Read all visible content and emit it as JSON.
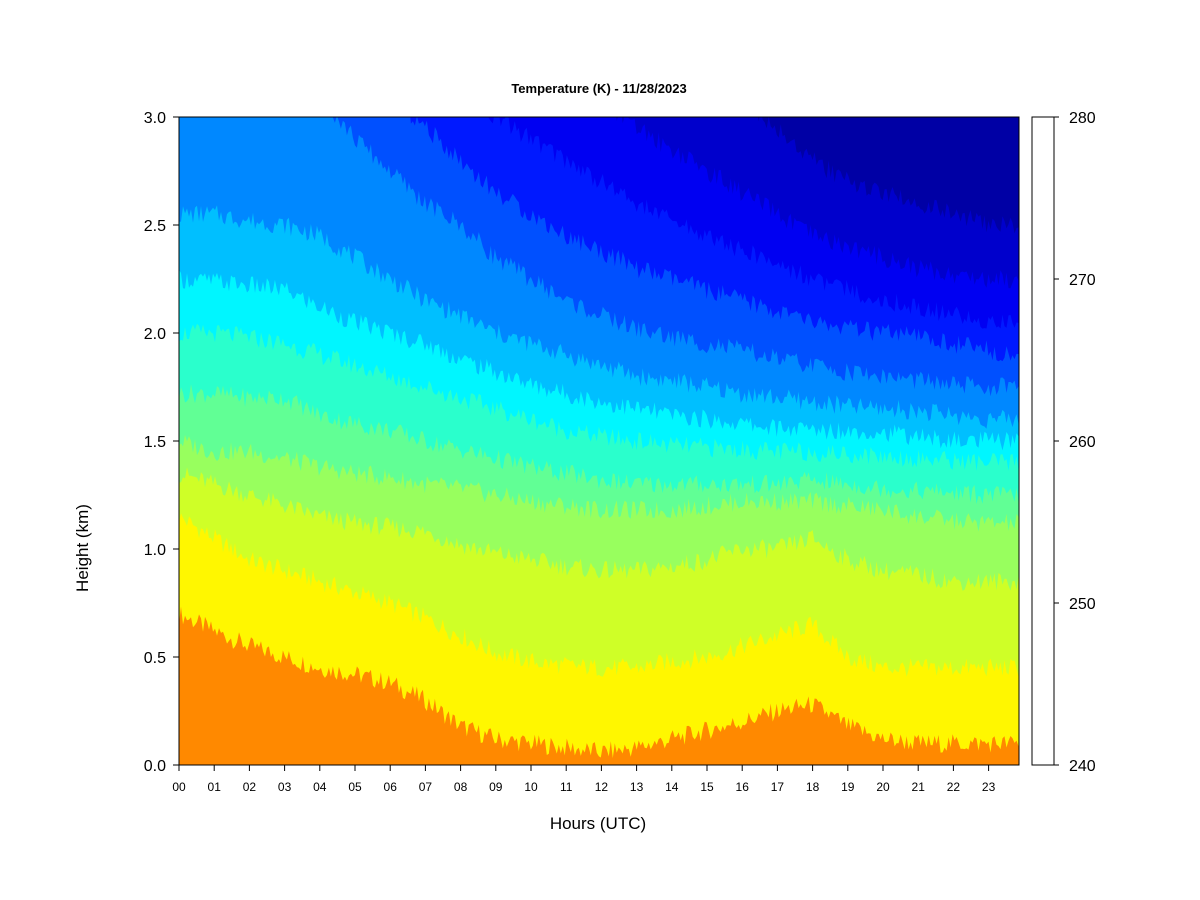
{
  "chart_data": {
    "type": "heatmap",
    "title": "Temperature (K) - 11/28/2023",
    "xlabel": "Hours (UTC)",
    "ylabel": "Height (km)",
    "x_ticks": [
      "00",
      "01",
      "02",
      "03",
      "04",
      "05",
      "06",
      "07",
      "08",
      "09",
      "10",
      "11",
      "12",
      "13",
      "14",
      "15",
      "16",
      "17",
      "18",
      "19",
      "20",
      "21",
      "22",
      "23"
    ],
    "xlim": [
      0,
      23.85
    ],
    "y_ticks": [
      "0.0",
      "0.5",
      "1.0",
      "1.5",
      "2.0",
      "2.5",
      "3.0"
    ],
    "ylim": [
      0,
      3.0
    ],
    "colorbar": {
      "min": 240,
      "max": 280,
      "step": 2.5,
      "tick_labels": [
        "240",
        "250",
        "260",
        "270",
        "280"
      ],
      "colors": [
        "#00007f",
        "#0000a5",
        "#0000cc",
        "#0000f2",
        "#0019ff",
        "#0050ff",
        "#0088ff",
        "#00bfff",
        "#00f6ff",
        "#2affcc",
        "#61ff95",
        "#98ff5e",
        "#cfff27",
        "#fff700",
        "#ffc000",
        "#ff8900",
        "#ff5200",
        "#ff1b00",
        "#e40000",
        "#b10000"
      ]
    },
    "isotherm_heights_km": {
      "hours": [
        0,
        1,
        2,
        3,
        4,
        5,
        6,
        7,
        8,
        9,
        10,
        11,
        12,
        13,
        14,
        15,
        16,
        17,
        18,
        19,
        20,
        21,
        22,
        23,
        23.85
      ],
      "levels": [
        {
          "temp": 275,
          "heights": [
            0.7,
            0.62,
            0.55,
            0.5,
            0.45,
            0.42,
            0.38,
            0.3,
            0.18,
            0.12,
            0.1,
            0.08,
            0.06,
            0.08,
            0.12,
            0.16,
            0.2,
            0.25,
            0.28,
            0.18,
            0.12,
            0.1,
            0.1,
            0.1,
            0.1
          ]
        },
        {
          "temp": 272.5,
          "heights": [
            1.15,
            1.05,
            0.95,
            0.9,
            0.85,
            0.8,
            0.75,
            0.68,
            0.6,
            0.52,
            0.48,
            0.46,
            0.45,
            0.45,
            0.48,
            0.5,
            0.55,
            0.6,
            0.65,
            0.5,
            0.45,
            0.45,
            0.45,
            0.45,
            0.45
          ]
        },
        {
          "temp": 270,
          "heights": [
            1.35,
            1.3,
            1.25,
            1.2,
            1.15,
            1.12,
            1.1,
            1.08,
            1.02,
            0.98,
            0.95,
            0.92,
            0.9,
            0.9,
            0.92,
            0.95,
            1.0,
            1.0,
            1.05,
            0.95,
            0.9,
            0.88,
            0.85,
            0.85,
            0.85
          ]
        },
        {
          "temp": 267.5,
          "heights": [
            1.5,
            1.45,
            1.45,
            1.42,
            1.38,
            1.35,
            1.33,
            1.3,
            1.28,
            1.25,
            1.22,
            1.2,
            1.18,
            1.18,
            1.18,
            1.2,
            1.22,
            1.22,
            1.22,
            1.2,
            1.18,
            1.15,
            1.13,
            1.12,
            1.12
          ]
        },
        {
          "temp": 265,
          "heights": [
            1.72,
            1.72,
            1.7,
            1.7,
            1.62,
            1.58,
            1.55,
            1.5,
            1.46,
            1.42,
            1.38,
            1.35,
            1.32,
            1.3,
            1.3,
            1.3,
            1.3,
            1.3,
            1.32,
            1.3,
            1.28,
            1.27,
            1.26,
            1.25,
            1.25
          ]
        },
        {
          "temp": 262.5,
          "heights": [
            2.0,
            2.0,
            1.98,
            1.95,
            1.9,
            1.85,
            1.8,
            1.75,
            1.7,
            1.65,
            1.6,
            1.55,
            1.52,
            1.5,
            1.48,
            1.47,
            1.46,
            1.45,
            1.45,
            1.44,
            1.43,
            1.42,
            1.41,
            1.4,
            1.4
          ]
        },
        {
          "temp": 260,
          "heights": [
            2.25,
            2.24,
            2.22,
            2.2,
            2.12,
            2.05,
            2.0,
            1.95,
            1.88,
            1.82,
            1.76,
            1.72,
            1.68,
            1.65,
            1.62,
            1.6,
            1.58,
            1.56,
            1.55,
            1.55,
            1.54,
            1.52,
            1.5,
            1.5,
            1.5
          ]
        },
        {
          "temp": 257.5,
          "heights": [
            2.55,
            2.55,
            2.52,
            2.5,
            2.45,
            2.35,
            2.25,
            2.15,
            2.08,
            2.0,
            1.95,
            1.9,
            1.85,
            1.8,
            1.78,
            1.75,
            1.72,
            1.7,
            1.68,
            1.66,
            1.65,
            1.64,
            1.62,
            1.6,
            1.6
          ]
        },
        {
          "temp": 255,
          "heights": [
            3.3,
            3.3,
            3.3,
            3.3,
            3.1,
            2.9,
            2.75,
            2.6,
            2.5,
            2.35,
            2.25,
            2.15,
            2.08,
            2.02,
            1.98,
            1.95,
            1.92,
            1.88,
            1.85,
            1.82,
            1.8,
            1.78,
            1.76,
            1.75,
            1.75
          ]
        },
        {
          "temp": 252.5,
          "heights": [
            3.6,
            3.6,
            3.6,
            3.6,
            3.5,
            3.3,
            3.1,
            2.95,
            2.8,
            2.65,
            2.55,
            2.45,
            2.38,
            2.3,
            2.25,
            2.2,
            2.15,
            2.1,
            2.05,
            2.02,
            2.0,
            1.98,
            1.95,
            1.92,
            1.9
          ]
        },
        {
          "temp": 250,
          "heights": [
            3.9,
            3.9,
            3.9,
            3.9,
            3.85,
            3.7,
            3.5,
            3.3,
            3.15,
            3.0,
            2.9,
            2.8,
            2.7,
            2.6,
            2.52,
            2.45,
            2.38,
            2.32,
            2.25,
            2.2,
            2.15,
            2.12,
            2.08,
            2.05,
            2.05
          ]
        },
        {
          "temp": 247.5,
          "heights": [
            4.3,
            4.3,
            4.3,
            4.3,
            4.2,
            4.1,
            3.95,
            3.75,
            3.55,
            3.4,
            3.25,
            3.15,
            3.05,
            2.95,
            2.85,
            2.75,
            2.65,
            2.55,
            2.45,
            2.4,
            2.35,
            2.3,
            2.27,
            2.25,
            2.25
          ]
        },
        {
          "temp": 245,
          "heights": [
            4.7,
            4.7,
            4.7,
            4.7,
            4.6,
            4.5,
            4.35,
            4.2,
            4.0,
            3.85,
            3.7,
            3.55,
            3.45,
            3.35,
            3.25,
            3.15,
            3.05,
            2.95,
            2.8,
            2.7,
            2.65,
            2.6,
            2.55,
            2.5,
            2.5
          ]
        }
      ]
    }
  }
}
